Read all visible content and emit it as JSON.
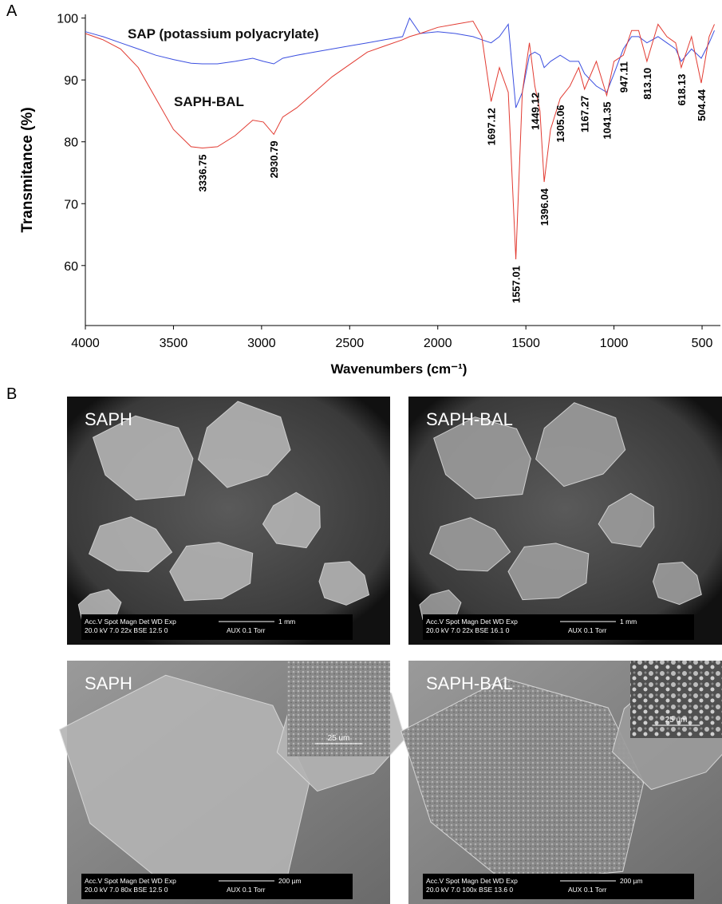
{
  "chart_data": {
    "type": "line",
    "panel_label": "A",
    "xlabel": "Wavenumbers (cm⁻¹)",
    "ylabel": "Transmitance (%)",
    "x": [
      4000,
      3900,
      3800,
      3700,
      3600,
      3500,
      3400,
      3336.75,
      3250,
      3150,
      3050,
      2990,
      2930.79,
      2880,
      2800,
      2700,
      2600,
      2500,
      2400,
      2300,
      2200,
      2160,
      2100,
      2000,
      1900,
      1800,
      1750,
      1697.12,
      1650,
      1600,
      1557.01,
      1520,
      1480,
      1449.12,
      1420,
      1396.04,
      1360,
      1305.06,
      1250,
      1200,
      1167.27,
      1100,
      1041.35,
      1000,
      947.11,
      900,
      860,
      813.1,
      750,
      700,
      650,
      618.13,
      560,
      504.44,
      460,
      430
    ],
    "series": [
      {
        "name": "SAP (potassium polyacrylate)",
        "color": "#3b4fe0",
        "values": [
          97.8,
          97,
          96,
          95,
          94,
          93.3,
          92.7,
          92.6,
          92.6,
          93,
          93.5,
          93,
          92.6,
          93.5,
          94,
          94.5,
          95,
          95.5,
          96,
          96.5,
          97,
          100,
          97.5,
          97.8,
          97.5,
          97,
          96.5,
          96,
          97,
          99,
          85.5,
          88,
          94,
          94.5,
          94,
          92,
          93,
          94,
          93,
          93,
          91,
          89,
          88,
          91,
          95,
          97,
          97,
          96,
          97,
          96,
          95,
          93,
          95,
          93.5,
          96,
          98
        ]
      },
      {
        "name": "SAPH-BAL",
        "color": "#e23b32",
        "values": [
          97.5,
          96.5,
          95,
          92,
          87,
          82,
          79.2,
          79,
          79.2,
          81,
          83.5,
          83.2,
          81.2,
          84,
          85.5,
          88,
          90.5,
          92.5,
          94.5,
          95.5,
          96.5,
          97,
          97.5,
          98.5,
          99,
          99.5,
          97,
          86.5,
          92,
          88,
          61,
          88,
          96,
          89,
          85,
          73.5,
          82,
          87,
          89,
          92,
          88.5,
          93,
          87.5,
          93,
          94,
          98,
          98,
          93,
          99,
          97,
          96,
          92,
          97,
          89.5,
          97,
          99
        ]
      }
    ],
    "annotations": [
      {
        "x": 3336.75,
        "label": "3336.75"
      },
      {
        "x": 2930.79,
        "label": "2930.79"
      },
      {
        "x": 1697.12,
        "label": "1697.12"
      },
      {
        "x": 1557.01,
        "label": "1557.01"
      },
      {
        "x": 1449.12,
        "label": "1449.12"
      },
      {
        "x": 1396.04,
        "label": "1396.04"
      },
      {
        "x": 1305.06,
        "label": "1305.06"
      },
      {
        "x": 1167.27,
        "label": "1167.27"
      },
      {
        "x": 1041.35,
        "label": "1041.35"
      },
      {
        "x": 947.11,
        "label": "947.11"
      },
      {
        "x": 813.1,
        "label": "813.10"
      },
      {
        "x": 618.13,
        "label": "618.13"
      },
      {
        "x": 504.44,
        "label": "504.44"
      }
    ],
    "xlim": [
      4000,
      396
    ],
    "xticks": [
      4000,
      3500,
      3000,
      2500,
      2000,
      1500,
      1000,
      500
    ],
    "ylim": [
      50.3,
      100.6
    ],
    "yticks": [
      60,
      70,
      80,
      90,
      100
    ]
  },
  "sem": {
    "panel_label": "B",
    "panels": [
      {
        "label": "SAPH",
        "info": [
          "Acc.V   Spot Magn    Det  WD  Exp",
          "20.0 kV 7.0   22x     BSE 12.5  0"
        ],
        "aux": "AUX  0.1 Torr",
        "scale": "1 mm"
      },
      {
        "label": "SAPH-BAL",
        "info": [
          "Acc.V   Spot Magn    Det  WD  Exp",
          "20.0 kV 7.0   22x     BSE 16.1  0"
        ],
        "aux": "AUX  0.1 Torr",
        "scale": "1 mm"
      },
      {
        "label": "SAPH",
        "info": [
          "Acc.V   Spot Magn    Det  WD  Exp",
          "20.0 kV 7.0   80x     BSE 12.5  0"
        ],
        "aux": "AUX  0.1 Torr",
        "scale": "200 µm",
        "inset_scale": "25 um"
      },
      {
        "label": "SAPH-BAL",
        "info": [
          "Acc.V   Spot Magn    Det  WD  Exp",
          "20.0 kV 7.0   100x    BSE 13.6  0"
        ],
        "aux": "AUX  0.1 Torr",
        "scale": "200 µm",
        "inset_scale": "25 um"
      }
    ]
  }
}
